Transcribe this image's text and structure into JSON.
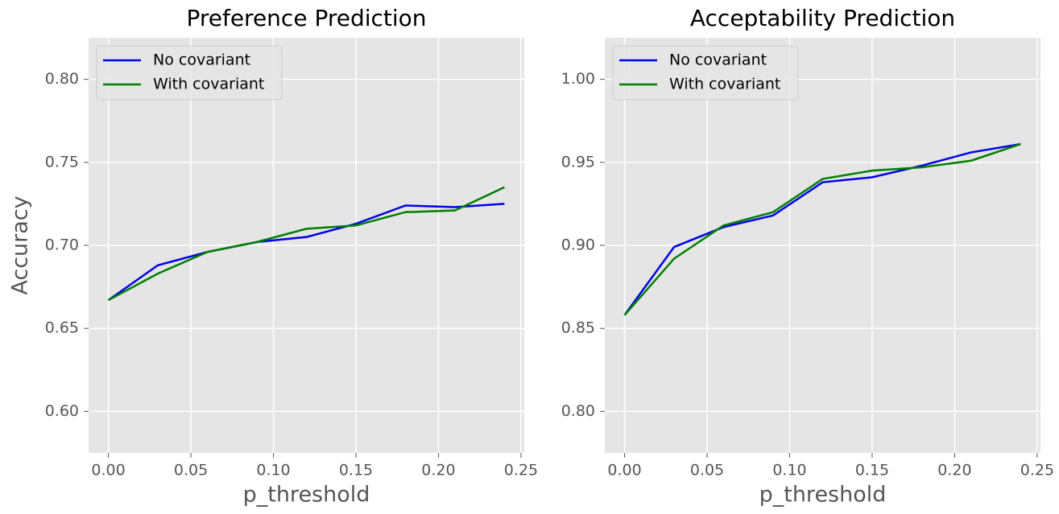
{
  "chart_data": [
    {
      "type": "line",
      "title": "Preference Prediction",
      "xlabel": "p_threshold",
      "ylabel": "Accuracy",
      "x": [
        0,
        0.03,
        0.06,
        0.09,
        0.12,
        0.15,
        0.18,
        0.21,
        0.24
      ],
      "series": [
        {
          "name": "No covariant",
          "color": "#0000ee",
          "values": [
            0.667,
            0.688,
            0.696,
            0.702,
            0.705,
            0.713,
            0.724,
            0.723,
            0.725
          ]
        },
        {
          "name": "With covariant",
          "color": "#007f00",
          "values": [
            0.667,
            0.683,
            0.696,
            0.702,
            0.71,
            0.712,
            0.72,
            0.721,
            0.735
          ]
        }
      ],
      "xlim": [
        -0.012,
        0.252
      ],
      "ylim": [
        0.575,
        0.825
      ],
      "xticks": [
        {
          "value": 0,
          "label": "0.00"
        },
        {
          "value": 0.05,
          "label": "0.05"
        },
        {
          "value": 0.1,
          "label": "0.10"
        },
        {
          "value": 0.15,
          "label": "0.15"
        },
        {
          "value": 0.2,
          "label": "0.20"
        },
        {
          "value": 0.25,
          "label": "0.25"
        }
      ],
      "yticks": [
        {
          "value": 0.6,
          "label": "0.60"
        },
        {
          "value": 0.65,
          "label": "0.65"
        },
        {
          "value": 0.7,
          "label": "0.70"
        },
        {
          "value": 0.75,
          "label": "0.75"
        },
        {
          "value": 0.8,
          "label": "0.80"
        }
      ],
      "grid": true,
      "legend": "upper left"
    },
    {
      "type": "line",
      "title": "Acceptability Prediction",
      "xlabel": "p_threshold",
      "x": [
        0,
        0.03,
        0.06,
        0.09,
        0.12,
        0.15,
        0.18,
        0.21,
        0.24
      ],
      "series": [
        {
          "name": "No covariant",
          "color": "#0000ee",
          "values": [
            0.858,
            0.899,
            0.911,
            0.918,
            0.938,
            0.941,
            0.948,
            0.956,
            0.961
          ]
        },
        {
          "name": "With covariant",
          "color": "#007f00",
          "values": [
            0.858,
            0.892,
            0.912,
            0.92,
            0.94,
            0.945,
            0.947,
            0.951,
            0.961
          ]
        }
      ],
      "xlim": [
        -0.012,
        0.252
      ],
      "ylim": [
        0.775,
        1.025
      ],
      "xticks": [
        {
          "value": 0,
          "label": "0.00"
        },
        {
          "value": 0.05,
          "label": "0.05"
        },
        {
          "value": 0.1,
          "label": "0.10"
        },
        {
          "value": 0.15,
          "label": "0.15"
        },
        {
          "value": 0.2,
          "label": "0.20"
        },
        {
          "value": 0.25,
          "label": "0.25"
        }
      ],
      "yticks": [
        {
          "value": 0.8,
          "label": "0.80"
        },
        {
          "value": 0.85,
          "label": "0.85"
        },
        {
          "value": 0.9,
          "label": "0.90"
        },
        {
          "value": 0.95,
          "label": "0.95"
        },
        {
          "value": 1,
          "label": "1.00"
        }
      ],
      "grid": true,
      "legend": "upper left"
    }
  ]
}
